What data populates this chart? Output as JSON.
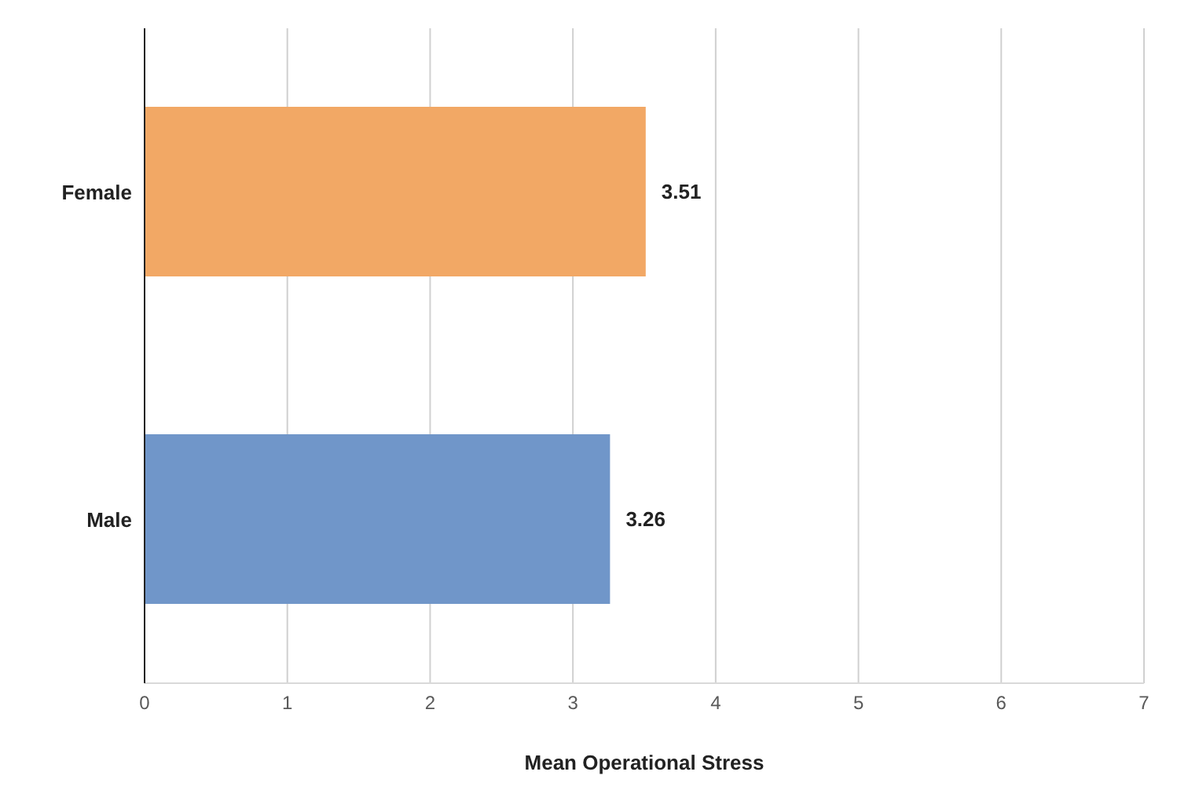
{
  "chart_data": {
    "type": "bar",
    "orientation": "horizontal",
    "categories": [
      "Female",
      "Male"
    ],
    "values": [
      3.51,
      3.26
    ],
    "colors": [
      "#f2a865",
      "#7096c9"
    ],
    "xlabel": "Mean Operational Stress",
    "xlim": [
      0,
      7
    ],
    "xticks": [
      0,
      1,
      2,
      3,
      4,
      5,
      6,
      7
    ],
    "grid": "x",
    "data_labels": true
  }
}
